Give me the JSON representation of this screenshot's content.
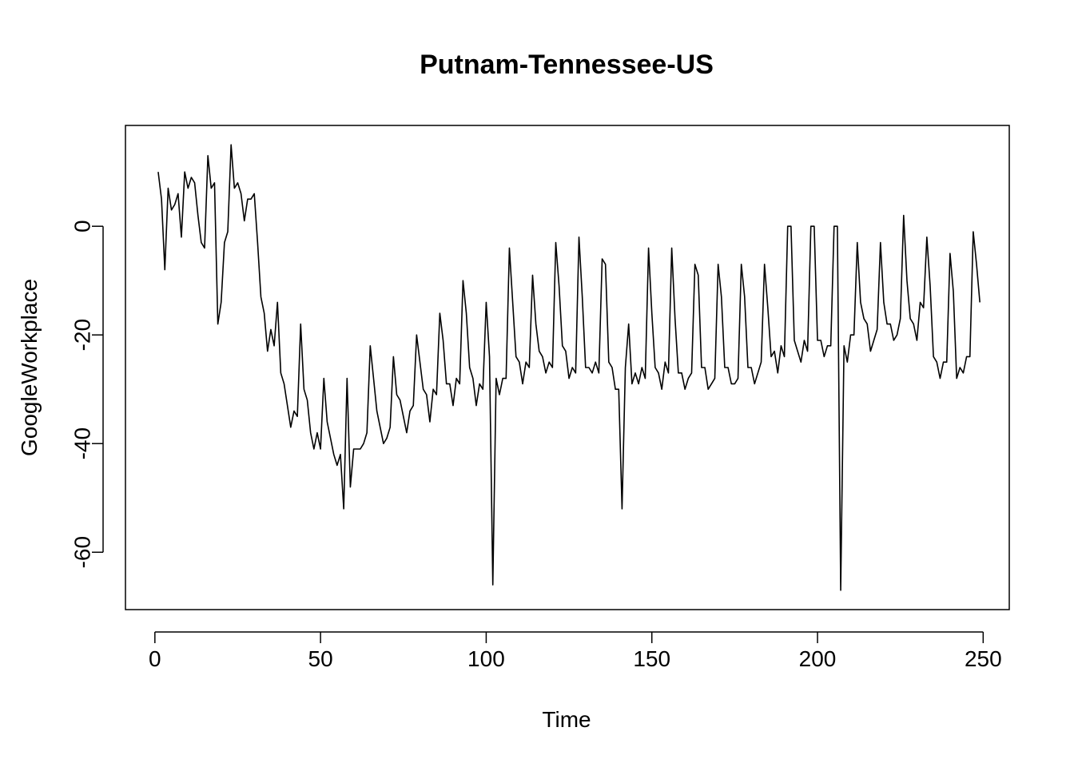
{
  "chart_data": {
    "type": "line",
    "title": "Putnam-Tennessee-US",
    "xlabel": "Time",
    "ylabel": "GoogleWorkplace",
    "xlim": [
      -8.88,
      257.88
    ],
    "ylim": [
      -70.56,
      18.56
    ],
    "x_ticks": [
      0,
      50,
      100,
      150,
      200,
      250
    ],
    "x_tick_labels": [
      "0",
      "50",
      "100",
      "150",
      "200",
      "250"
    ],
    "y_ticks": [
      0,
      -20,
      -40,
      -60
    ],
    "y_tick_labels": [
      "0",
      "-20",
      "-40",
      "-60"
    ],
    "grid": false,
    "legend": "none",
    "series": [
      {
        "color": "#000000",
        "x_start": 1,
        "values": [
          10,
          5,
          -8,
          7,
          3,
          4,
          6,
          -2,
          10,
          7,
          9,
          8,
          2,
          -3,
          -4,
          13,
          7,
          8,
          -18,
          -14,
          -3,
          -1,
          15,
          7,
          8,
          6,
          1,
          5,
          5,
          6,
          -3,
          -13,
          -16,
          -23,
          -19,
          -22,
          -14,
          -27,
          -29,
          -33,
          -37,
          -34,
          -35,
          -18,
          -30,
          -32,
          -38,
          -41,
          -38,
          -41,
          -28,
          -36,
          -39,
          -42,
          -44,
          -42,
          -52,
          -28,
          -48,
          -41,
          -41,
          -41,
          -40,
          -38,
          -22,
          -28,
          -34,
          -37,
          -40,
          -39,
          -37,
          -24,
          -31,
          -32,
          -35,
          -38,
          -34,
          -33,
          -20,
          -25,
          -30,
          -31,
          -36,
          -30,
          -31,
          -16,
          -21,
          -29,
          -29,
          -33,
          -28,
          -29,
          -10,
          -16,
          -26,
          -28,
          -33,
          -29,
          -30,
          -14,
          -24,
          -66,
          -28,
          -31,
          -28,
          -28,
          -4,
          -14,
          -24,
          -25,
          -29,
          -25,
          -26,
          -9,
          -18,
          -23,
          -24,
          -27,
          -25,
          -26,
          -3,
          -11,
          -22,
          -23,
          -28,
          -26,
          -27,
          -2,
          -13,
          -26,
          -26,
          -27,
          -25,
          -27,
          -6,
          -7,
          -25,
          -26,
          -30,
          -30,
          -52,
          -26,
          -18,
          -29,
          -27,
          -29,
          -26,
          -28,
          -4,
          -16,
          -26,
          -27,
          -30,
          -25,
          -27,
          -4,
          -17,
          -27,
          -27,
          -30,
          -28,
          -27,
          -7,
          -9,
          -26,
          -26,
          -30,
          -29,
          -28,
          -7,
          -13,
          -26,
          -26,
          -29,
          -29,
          -28,
          -7,
          -13,
          -26,
          -26,
          -29,
          -27,
          -25,
          -7,
          -15,
          -24,
          -23,
          -27,
          -22,
          -24,
          0,
          0,
          -21,
          -23,
          -25,
          -21,
          -23,
          0,
          0,
          -21,
          -21,
          -24,
          -22,
          -22,
          0,
          0,
          -67,
          -22,
          -25,
          -20,
          -20,
          -3,
          -14,
          -17,
          -18,
          -23,
          -21,
          -19,
          -3,
          -14,
          -18,
          -18,
          -21,
          -20,
          -17,
          2,
          -10,
          -17,
          -18,
          -21,
          -14,
          -15,
          -2,
          -11,
          -24,
          -25,
          -28,
          -25,
          -25,
          -5,
          -12,
          -28,
          -26,
          -27,
          -24,
          -24,
          -1,
          -7,
          -14
        ]
      }
    ]
  }
}
